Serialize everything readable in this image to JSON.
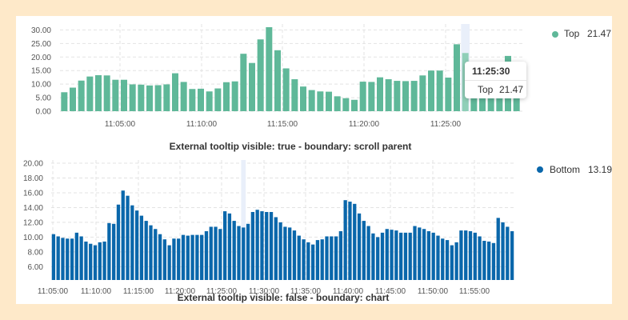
{
  "colors": {
    "top": "#5fb899",
    "top_highlight": "#8fcfb8",
    "bottom": "#0a67ab",
    "grid": "#e3e3e3",
    "crosshair": "#e9effa"
  },
  "chart_data": [
    {
      "type": "bar",
      "caption": "External tooltip visible: true - boundary: scroll parent",
      "series": [
        {
          "name": "Top",
          "legend_value": "21.47",
          "values": [
            7.0,
            8.7,
            11.3,
            12.8,
            13.3,
            13.2,
            11.6,
            11.6,
            9.9,
            9.8,
            9.5,
            9.6,
            9.9,
            14.0,
            10.8,
            8.2,
            8.3,
            7.3,
            8.4,
            10.7,
            11.0,
            21.2,
            17.8,
            26.5,
            31.0,
            22.5,
            15.8,
            11.8,
            9.1,
            7.8,
            7.3,
            7.2,
            5.5,
            4.8,
            4.2,
            10.9,
            10.8,
            12.5,
            11.8,
            11.2,
            11.1,
            11.2,
            13.2,
            15.0,
            15.0,
            12.4,
            24.7,
            21.47,
            14.5,
            10.2,
            12.5,
            16.8,
            20.4,
            13.5
          ]
        }
      ],
      "y_ticks": [
        "30.00",
        "25.00",
        "20.00",
        "15.00",
        "10.00",
        "5.00",
        "0.00"
      ],
      "ylim": [
        0,
        31
      ],
      "x_ticks": [
        "11:05:00",
        "11:10:00",
        "11:15:00",
        "11:20:00",
        "11:25:00"
      ],
      "highlight_index": 47,
      "tooltip": {
        "time": "11:25:30",
        "series": "Top",
        "value": "21.47"
      }
    },
    {
      "type": "bar",
      "caption": "External tooltip visible: false - boundary: chart",
      "series": [
        {
          "name": "Bottom",
          "legend_value": "13.19",
          "values": [
            10.4,
            10.1,
            9.9,
            9.8,
            9.8,
            10.6,
            10.1,
            9.4,
            9.1,
            8.9,
            9.3,
            9.4,
            11.9,
            11.8,
            14.4,
            16.3,
            15.6,
            14.3,
            13.6,
            12.9,
            12.2,
            11.6,
            11.1,
            10.4,
            9.7,
            8.9,
            9.8,
            9.8,
            10.3,
            10.2,
            10.3,
            10.3,
            10.3,
            10.8,
            11.4,
            11.4,
            11.1,
            13.5,
            13.2,
            12.2,
            11.5,
            11.3,
            11.8,
            13.4,
            13.7,
            13.5,
            13.4,
            13.4,
            12.7,
            12.0,
            11.4,
            11.3,
            10.9,
            10.2,
            9.7,
            9.3,
            9.0,
            9.6,
            9.7,
            10.1,
            10.1,
            10.1,
            10.8,
            15.0,
            14.8,
            14.5,
            13.2,
            12.2,
            11.5,
            10.5,
            10.0,
            10.6,
            11.1,
            11.0,
            10.9,
            10.6,
            10.6,
            10.6,
            11.5,
            11.3,
            11.1,
            10.8,
            10.6,
            10.2,
            9.8,
            9.6,
            8.9,
            9.3,
            10.9,
            10.9,
            10.8,
            10.6,
            10.1,
            9.5,
            9.4,
            9.2,
            12.6,
            12.0,
            11.4,
            10.8
          ]
        }
      ],
      "y_ticks": [
        "20.00",
        "18.00",
        "16.00",
        "14.00",
        "12.00",
        "10.00",
        "8.00",
        "6.00"
      ],
      "ylim": [
        4.2,
        20.0
      ],
      "x_ticks": [
        "11:05:00",
        "11:10:00",
        "11:15:00",
        "11:20:00",
        "11:25:00",
        "11:30:00",
        "11:35:00",
        "11:40:00",
        "11:45:00",
        "11:50:00",
        "11:55:00"
      ],
      "highlight_index": 41
    }
  ]
}
